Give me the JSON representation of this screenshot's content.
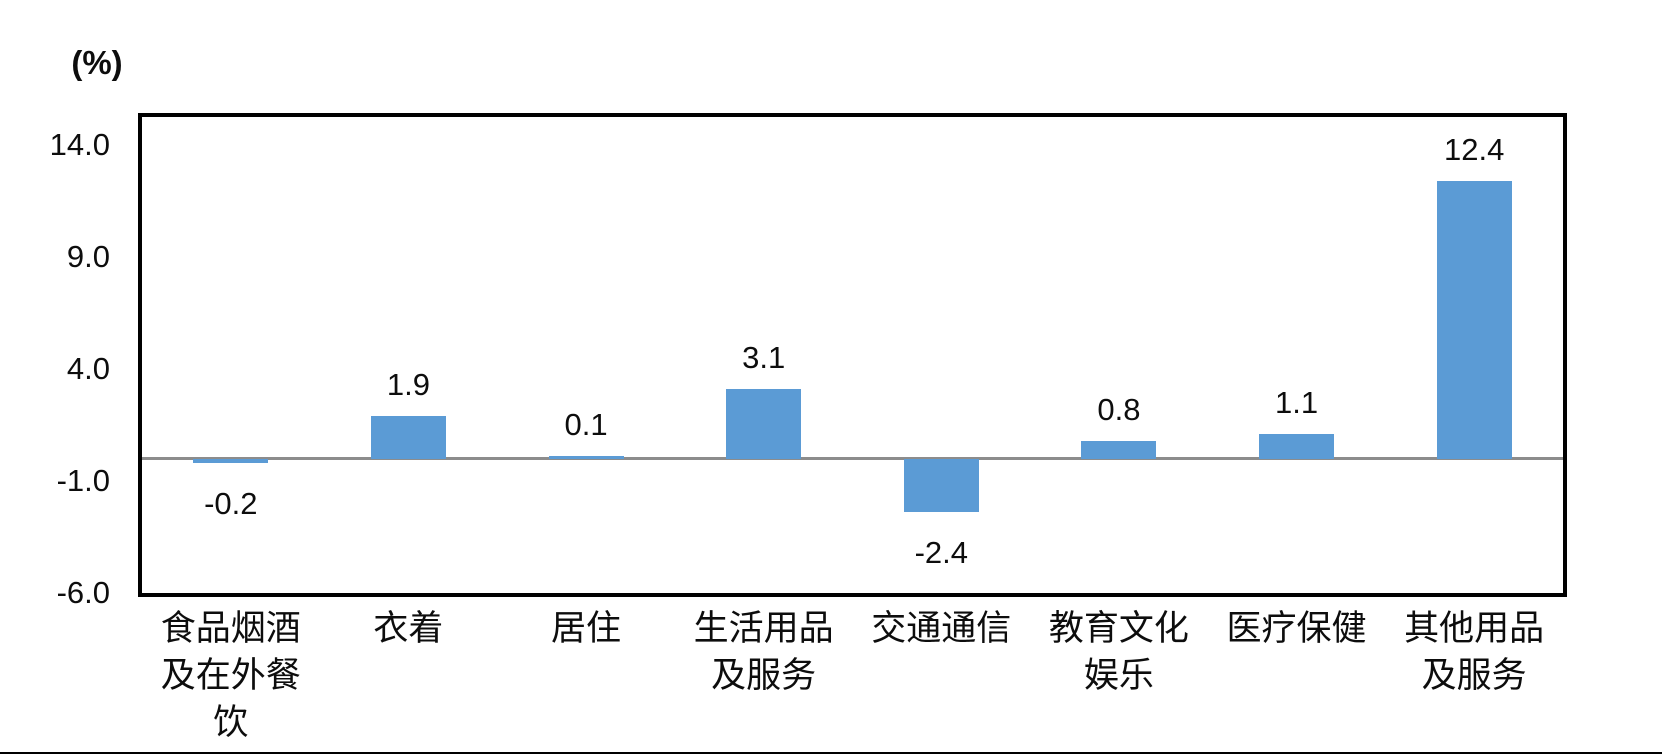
{
  "chart_data": {
    "type": "bar",
    "title": "",
    "unit_label": "(%)",
    "categories": [
      "食品烟酒\n及在外餐\n饮",
      "衣着",
      "居住",
      "生活用品\n及服务",
      "交通通信",
      "教育文化\n娱乐",
      "医疗保健",
      "其他用品\n及服务"
    ],
    "values": [
      -0.2,
      1.9,
      0.1,
      3.1,
      -2.4,
      0.8,
      1.1,
      12.4
    ],
    "value_labels": [
      "-0.2",
      "1.9",
      "0.1",
      "3.1",
      "-2.4",
      "0.8",
      "1.1",
      "12.4"
    ],
    "y_ticks": [
      {
        "value": 14,
        "label": "14.0"
      },
      {
        "value": 9,
        "label": "9.0"
      },
      {
        "value": 4,
        "label": "4.0"
      },
      {
        "value": -1,
        "label": "-1.0"
      },
      {
        "value": -6,
        "label": "-6.0"
      }
    ],
    "ylim": [
      -6,
      15.25
    ],
    "xlabel": "",
    "ylabel": "",
    "legend": "none",
    "grid": "off",
    "bar_color": "#5B9BD5",
    "zero_line_color": "#8C8C8C",
    "frame_color": "#000000"
  }
}
